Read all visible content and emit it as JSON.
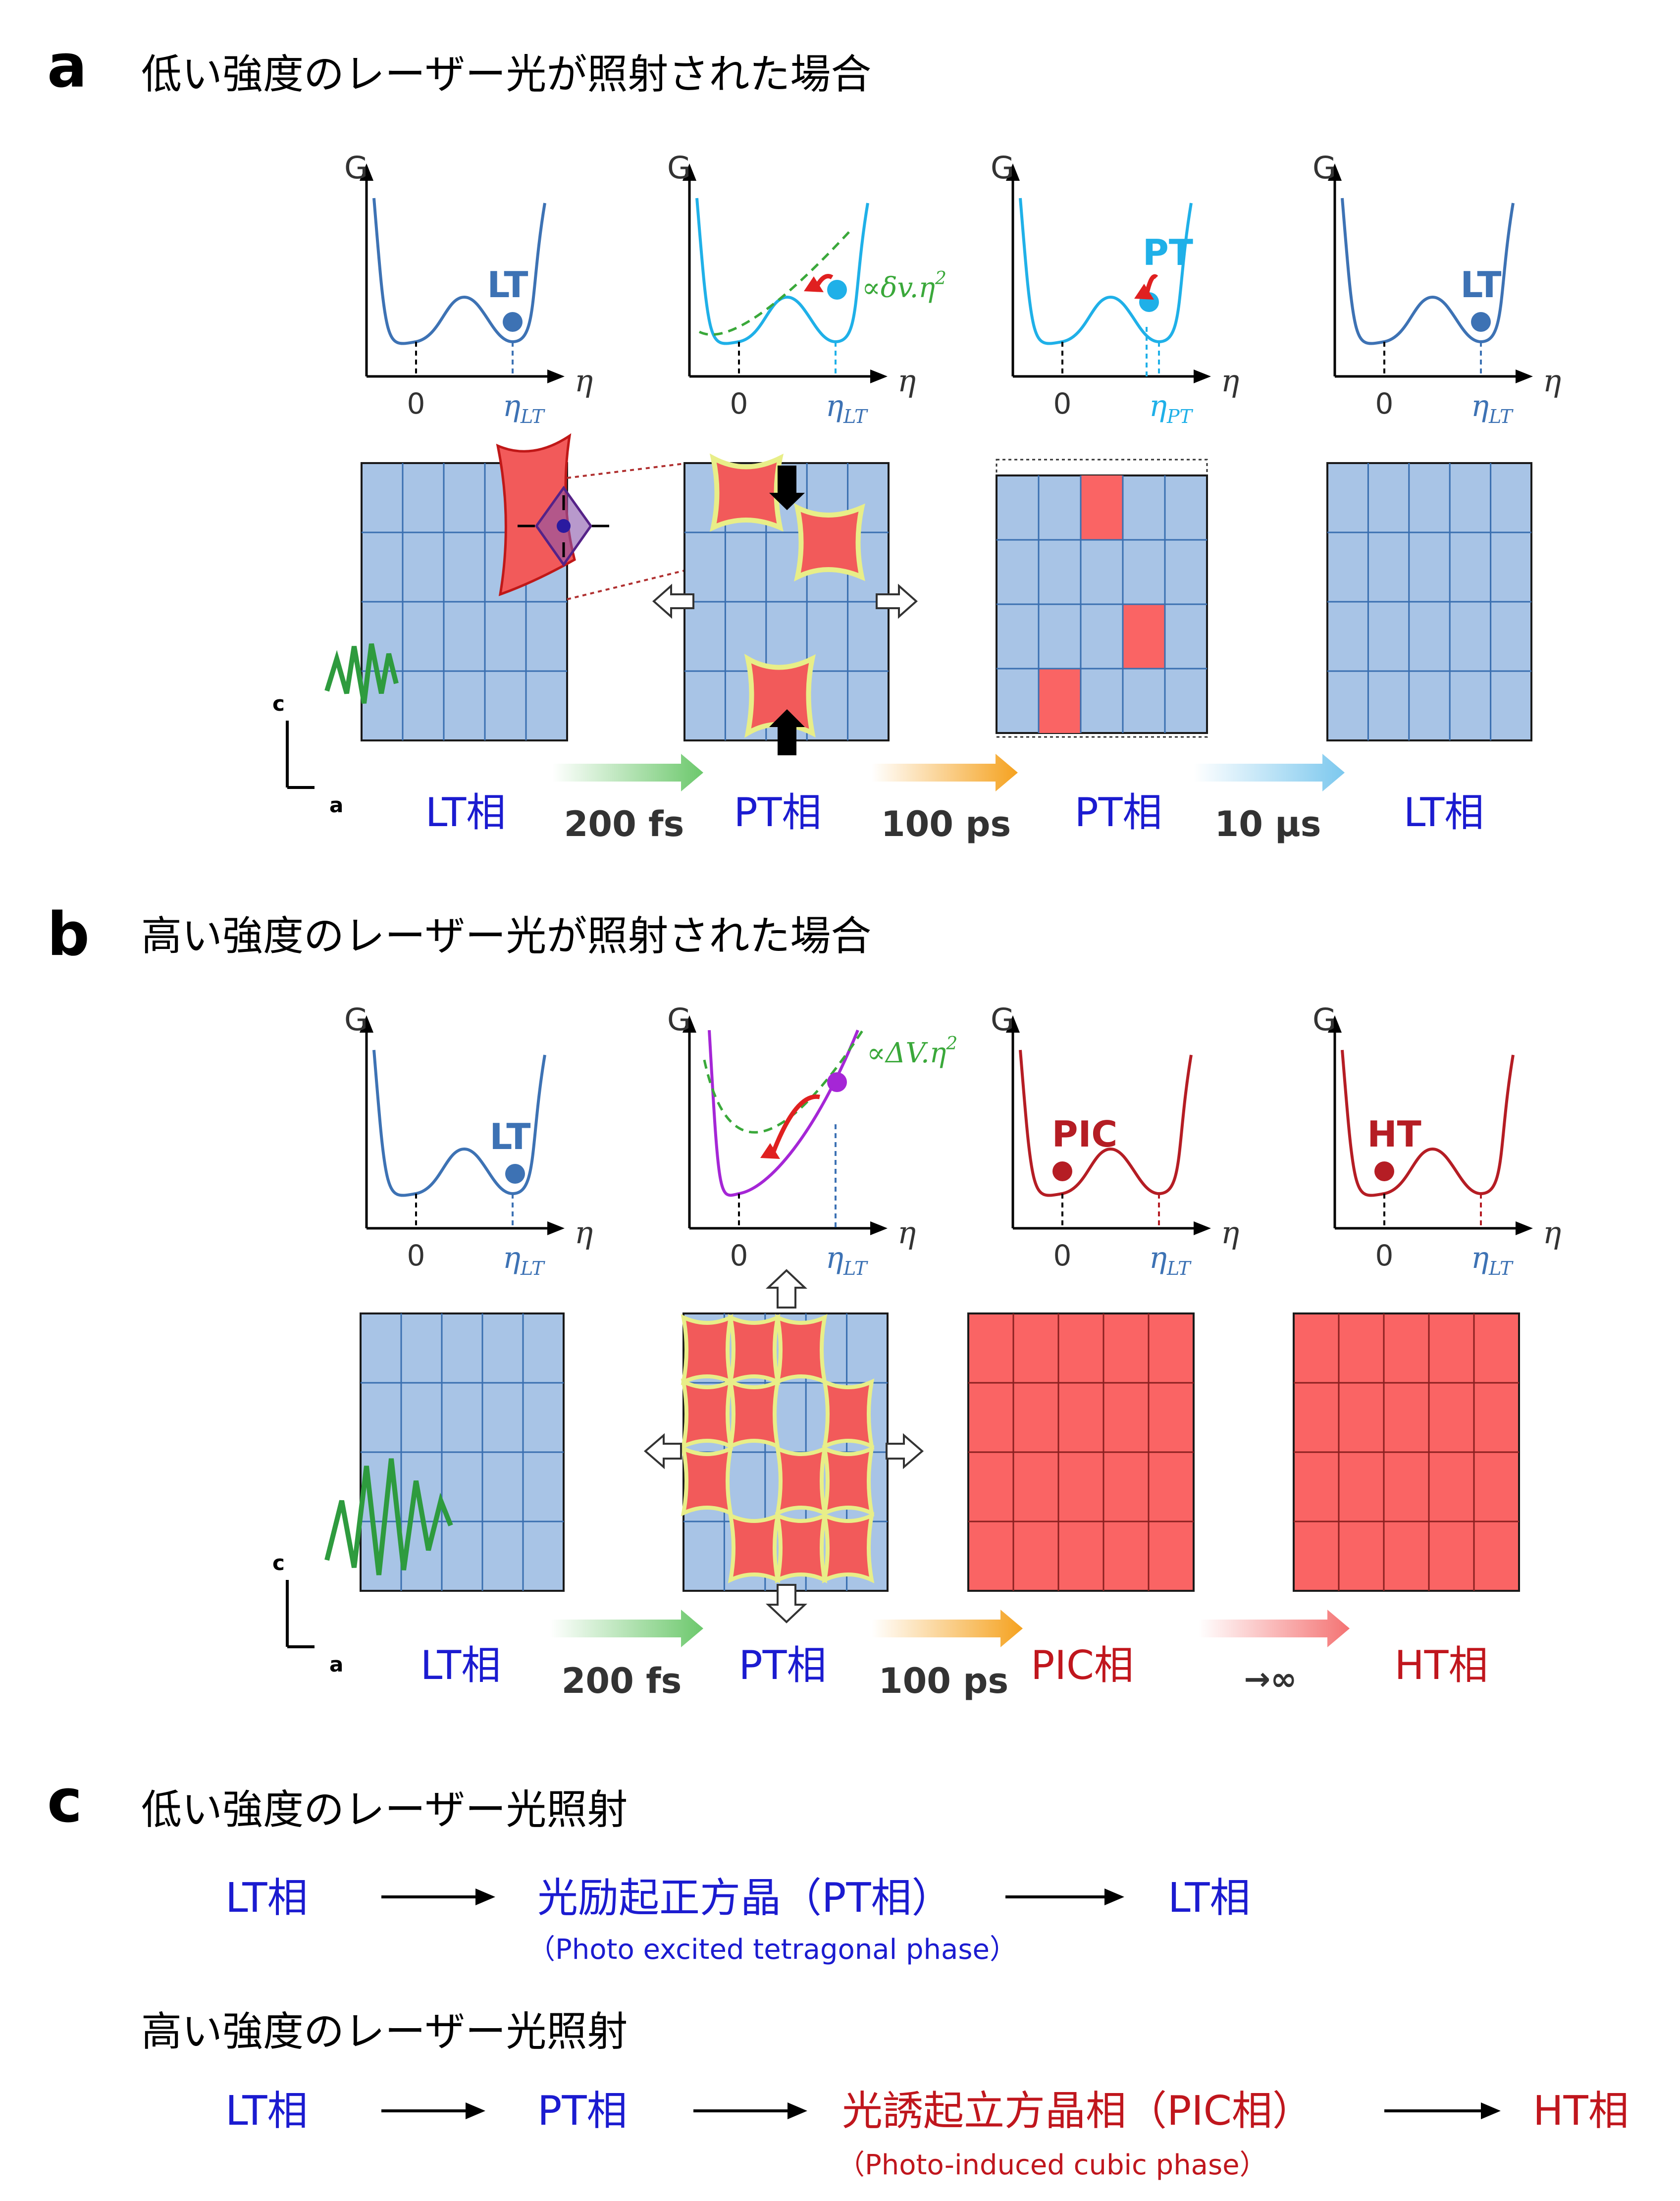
{
  "colors": {
    "blue_text": "#1b1bd0",
    "red_text": "#c0161d",
    "lt_curve": "#3d72b4",
    "pt_curve": "#1fb0e8",
    "pic_curve": "#b51d24",
    "purple_curve": "#a526d6",
    "green_dashed": "#3aa83a",
    "cell_blue": "#a8c4e6",
    "cell_red": "#fa6464",
    "grid_line": "#3a6fb0",
    "arrow_green": "#6cc86c",
    "arrow_orange": "#f5a21f",
    "arrow_lightblue": "#7cc8ee",
    "arrow_salmon": "#f47373"
  },
  "panel_a": {
    "letter": "a",
    "title": "低い強度のレーザー光が照射された場合",
    "energy_plots": [
      {
        "g": "G",
        "eta": "η",
        "zero": "0",
        "tick": "η",
        "tick_sub": "LT",
        "state": "LT"
      },
      {
        "g": "G",
        "eta": "η",
        "zero": "0",
        "tick": "η",
        "tick_sub": "LT",
        "annotation": "∝δv.η",
        "annotation_sup": "2"
      },
      {
        "g": "G",
        "eta": "η",
        "zero": "0",
        "tick": "η",
        "tick_sub": "PT",
        "state": "PT"
      },
      {
        "g": "G",
        "eta": "η",
        "zero": "0",
        "tick": "η",
        "tick_sub": "LT",
        "state": "LT"
      }
    ],
    "axis": {
      "c": "c",
      "a": "a"
    },
    "phases": [
      "LT相",
      "PT相",
      "PT相",
      "LT相"
    ],
    "times": [
      "200 fs",
      "100 ps",
      "10 μs"
    ]
  },
  "panel_b": {
    "letter": "b",
    "title": "高い強度のレーザー光が照射された場合",
    "energy_plots": [
      {
        "g": "G",
        "eta": "η",
        "zero": "0",
        "tick": "η",
        "tick_sub": "LT",
        "state": "LT"
      },
      {
        "g": "G",
        "eta": "η",
        "zero": "0",
        "tick": "η",
        "tick_sub": "LT",
        "annotation": "∝ΔV.η",
        "annotation_sup": "2"
      },
      {
        "g": "G",
        "eta": "η",
        "zero": "0",
        "tick": "η",
        "tick_sub": "LT",
        "state": "PIC"
      },
      {
        "g": "G",
        "eta": "η",
        "zero": "0",
        "tick": "η",
        "tick_sub": "LT",
        "state": "HT"
      }
    ],
    "axis": {
      "c": "c",
      "a": "a"
    },
    "phases": [
      "LT相",
      "PT相",
      "PIC相",
      "HT相"
    ],
    "times": [
      "200 fs",
      "100 ps",
      "→∞"
    ]
  },
  "panel_c": {
    "letter": "c",
    "low_title": "低い強度のレーザー光照射",
    "low_steps": [
      "LT相",
      "光励起正方晶（PT相）",
      "LT相"
    ],
    "low_note": "（Photo excited tetragonal phase）",
    "high_title": "高い強度のレーザー光照射",
    "high_steps": [
      "LT相",
      "PT相",
      "光誘起立方晶相（PIC相）",
      "HT相"
    ],
    "high_note": "（Photo-induced cubic phase）"
  }
}
